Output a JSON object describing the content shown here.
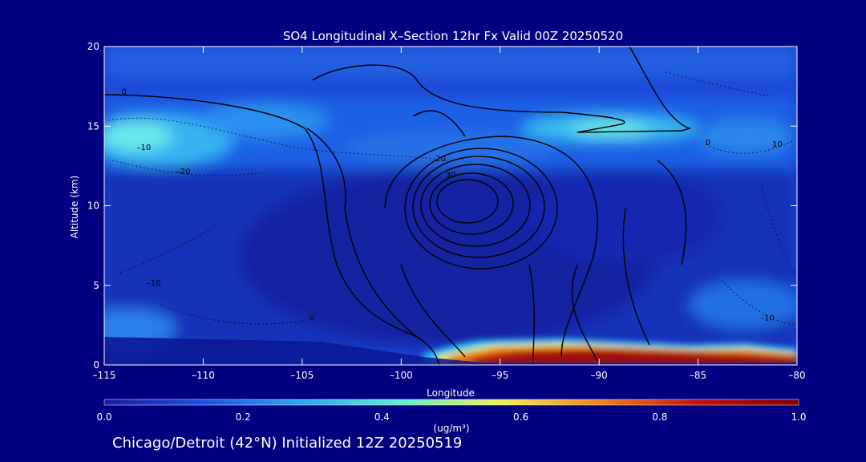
{
  "chart_data": {
    "type": "heatmap",
    "title": "SO4 Longitudinal X–Section 12hr  Fx Valid 00Z 20250520",
    "xlabel": "Longitude",
    "ylabel": "Altitude (km)",
    "xlim": [
      -115,
      -80
    ],
    "ylim": [
      0,
      20
    ],
    "x_ticks": [
      -115,
      -110,
      -105,
      -100,
      -95,
      -90,
      -85,
      -80
    ],
    "x_tick_labels": [
      "–115",
      "–110",
      "–105",
      "–100",
      "–95",
      "–90",
      "–85",
      "–80"
    ],
    "y_ticks": [
      0,
      5,
      10,
      15,
      20
    ],
    "y_tick_labels": [
      "0",
      "5",
      "10",
      "15",
      "20"
    ],
    "colorbar": {
      "label": "(ug/m³)",
      "ticks": [
        0.0,
        0.2,
        0.4,
        0.6,
        0.8,
        1.0
      ],
      "tick_labels": [
        "0.0",
        "0.2",
        "0.4",
        "0.6",
        "0.8",
        "1.0"
      ],
      "colors": [
        "#1a1aa0",
        "#1e50e0",
        "#2aa8f0",
        "#5ef0d0",
        "#f0f050",
        "#f08020",
        "#c01010",
        "#800000"
      ]
    },
    "contour_labels": [
      {
        "text": "0",
        "x": -114,
        "y": 17
      },
      {
        "text": "–10",
        "x": -113,
        "y": 13.5
      },
      {
        "text": "–20",
        "x": -111,
        "y": 12
      },
      {
        "text": "–10",
        "x": -112.5,
        "y": 5
      },
      {
        "text": "0",
        "x": -104.5,
        "y": 2.8
      },
      {
        "text": "20",
        "x": -98,
        "y": 12.8
      },
      {
        "text": "30",
        "x": -97.5,
        "y": 11.8
      },
      {
        "text": "0",
        "x": -84.5,
        "y": 13.8
      },
      {
        "text": "10",
        "x": -81,
        "y": 13.7
      },
      {
        "text": "–10",
        "x": -81.5,
        "y": 2.8
      }
    ],
    "features": {
      "upper_band_altitude_km": 14.5,
      "upper_band_peak_longitudes": [
        -113,
        -88
      ],
      "upper_band_peak_value": 0.5,
      "surface_maximum_longitude_range": [
        -98,
        -80
      ],
      "surface_maximum_value": 1.0,
      "jet_core_longitude": -96.5,
      "jet_core_altitude_km": 10.5
    }
  },
  "caption": "Chicago/Detroit (42°N) Initialized 12Z 20250519"
}
